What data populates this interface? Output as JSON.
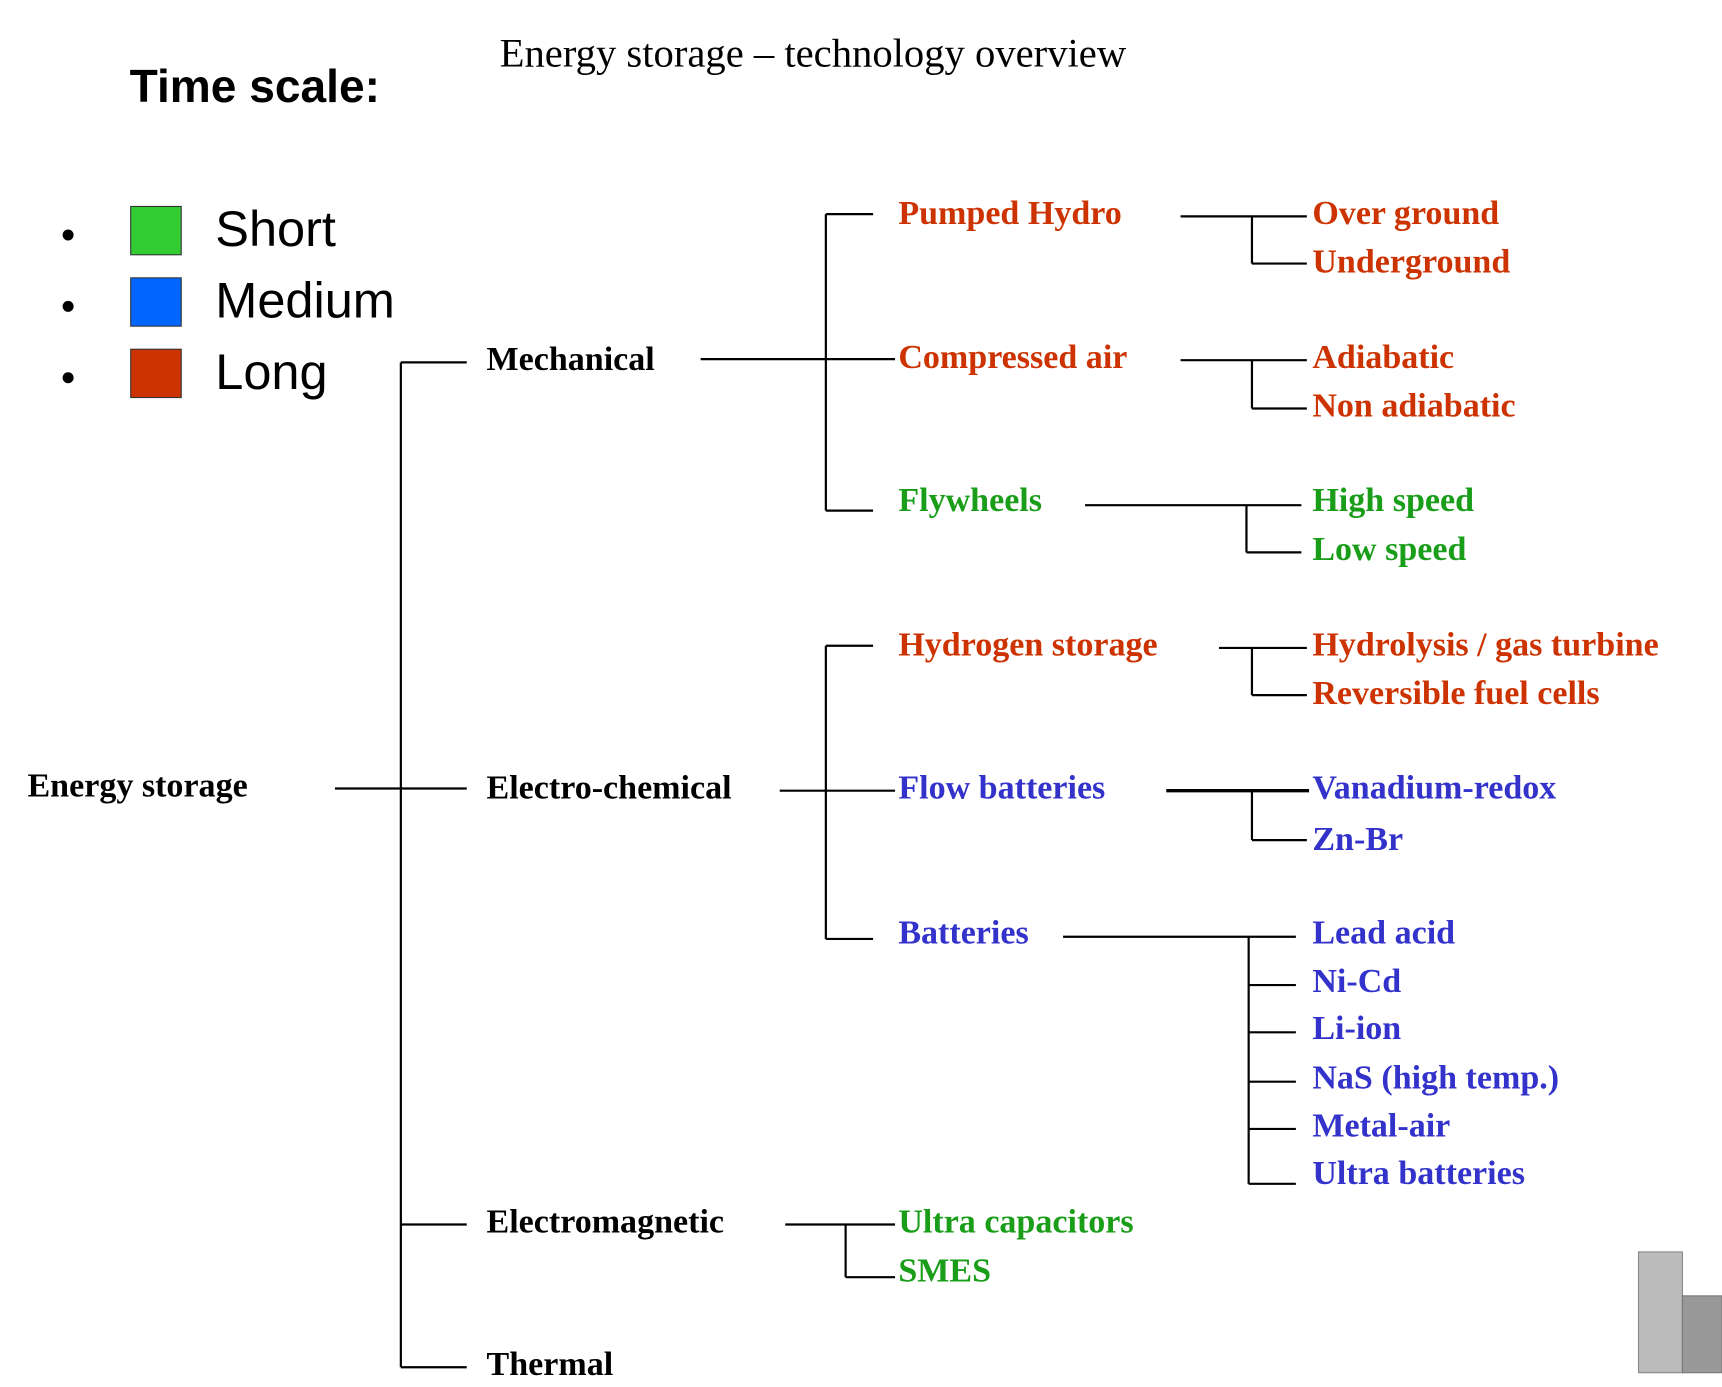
{
  "title": "Energy storage – technology overview",
  "legend": {
    "heading": "Time scale:",
    "items": [
      {
        "label": "Short",
        "color": "#33cc33"
      },
      {
        "label": "Medium",
        "color": "#0066ff"
      },
      {
        "label": "Long",
        "color": "#cc3300"
      }
    ]
  },
  "tree": {
    "label": "Energy storage",
    "children": [
      {
        "label": "Mechanical",
        "children": [
          {
            "label": "Pumped Hydro",
            "color": "#cc3300",
            "children": [
              {
                "label": "Over ground"
              },
              {
                "label": "Underground"
              }
            ]
          },
          {
            "label": "Compressed air",
            "color": "#cc3300",
            "children": [
              {
                "label": "Adiabatic"
              },
              {
                "label": "Non adiabatic"
              }
            ]
          },
          {
            "label": "Flywheels",
            "color": "#1a9e1a",
            "children": [
              {
                "label": "High speed"
              },
              {
                "label": "Low speed"
              }
            ]
          }
        ]
      },
      {
        "label": "Electro-chemical",
        "children": [
          {
            "label": "Hydrogen storage",
            "color": "#cc3300",
            "children": [
              {
                "label": "Hydrolysis / gas turbine"
              },
              {
                "label": "Reversible fuel cells"
              }
            ]
          },
          {
            "label": "Flow batteries",
            "color": "#3333cc",
            "children": [
              {
                "label": "Vanadium-redox"
              },
              {
                "label": "Zn-Br"
              }
            ]
          },
          {
            "label": "Batteries",
            "color": "#3333cc",
            "children": [
              {
                "label": "Lead acid"
              },
              {
                "label": "Ni-Cd"
              },
              {
                "label": "Li-ion"
              },
              {
                "label": "NaS (high temp.)"
              },
              {
                "label": "Metal-air"
              },
              {
                "label": "Ultra batteries"
              }
            ]
          }
        ]
      },
      {
        "label": "Electromagnetic",
        "children": [
          {
            "label": "Ultra capacitors",
            "color": "#1a9e1a"
          },
          {
            "label": "SMES",
            "color": "#1a9e1a"
          }
        ]
      },
      {
        "label": "Thermal"
      }
    ]
  }
}
